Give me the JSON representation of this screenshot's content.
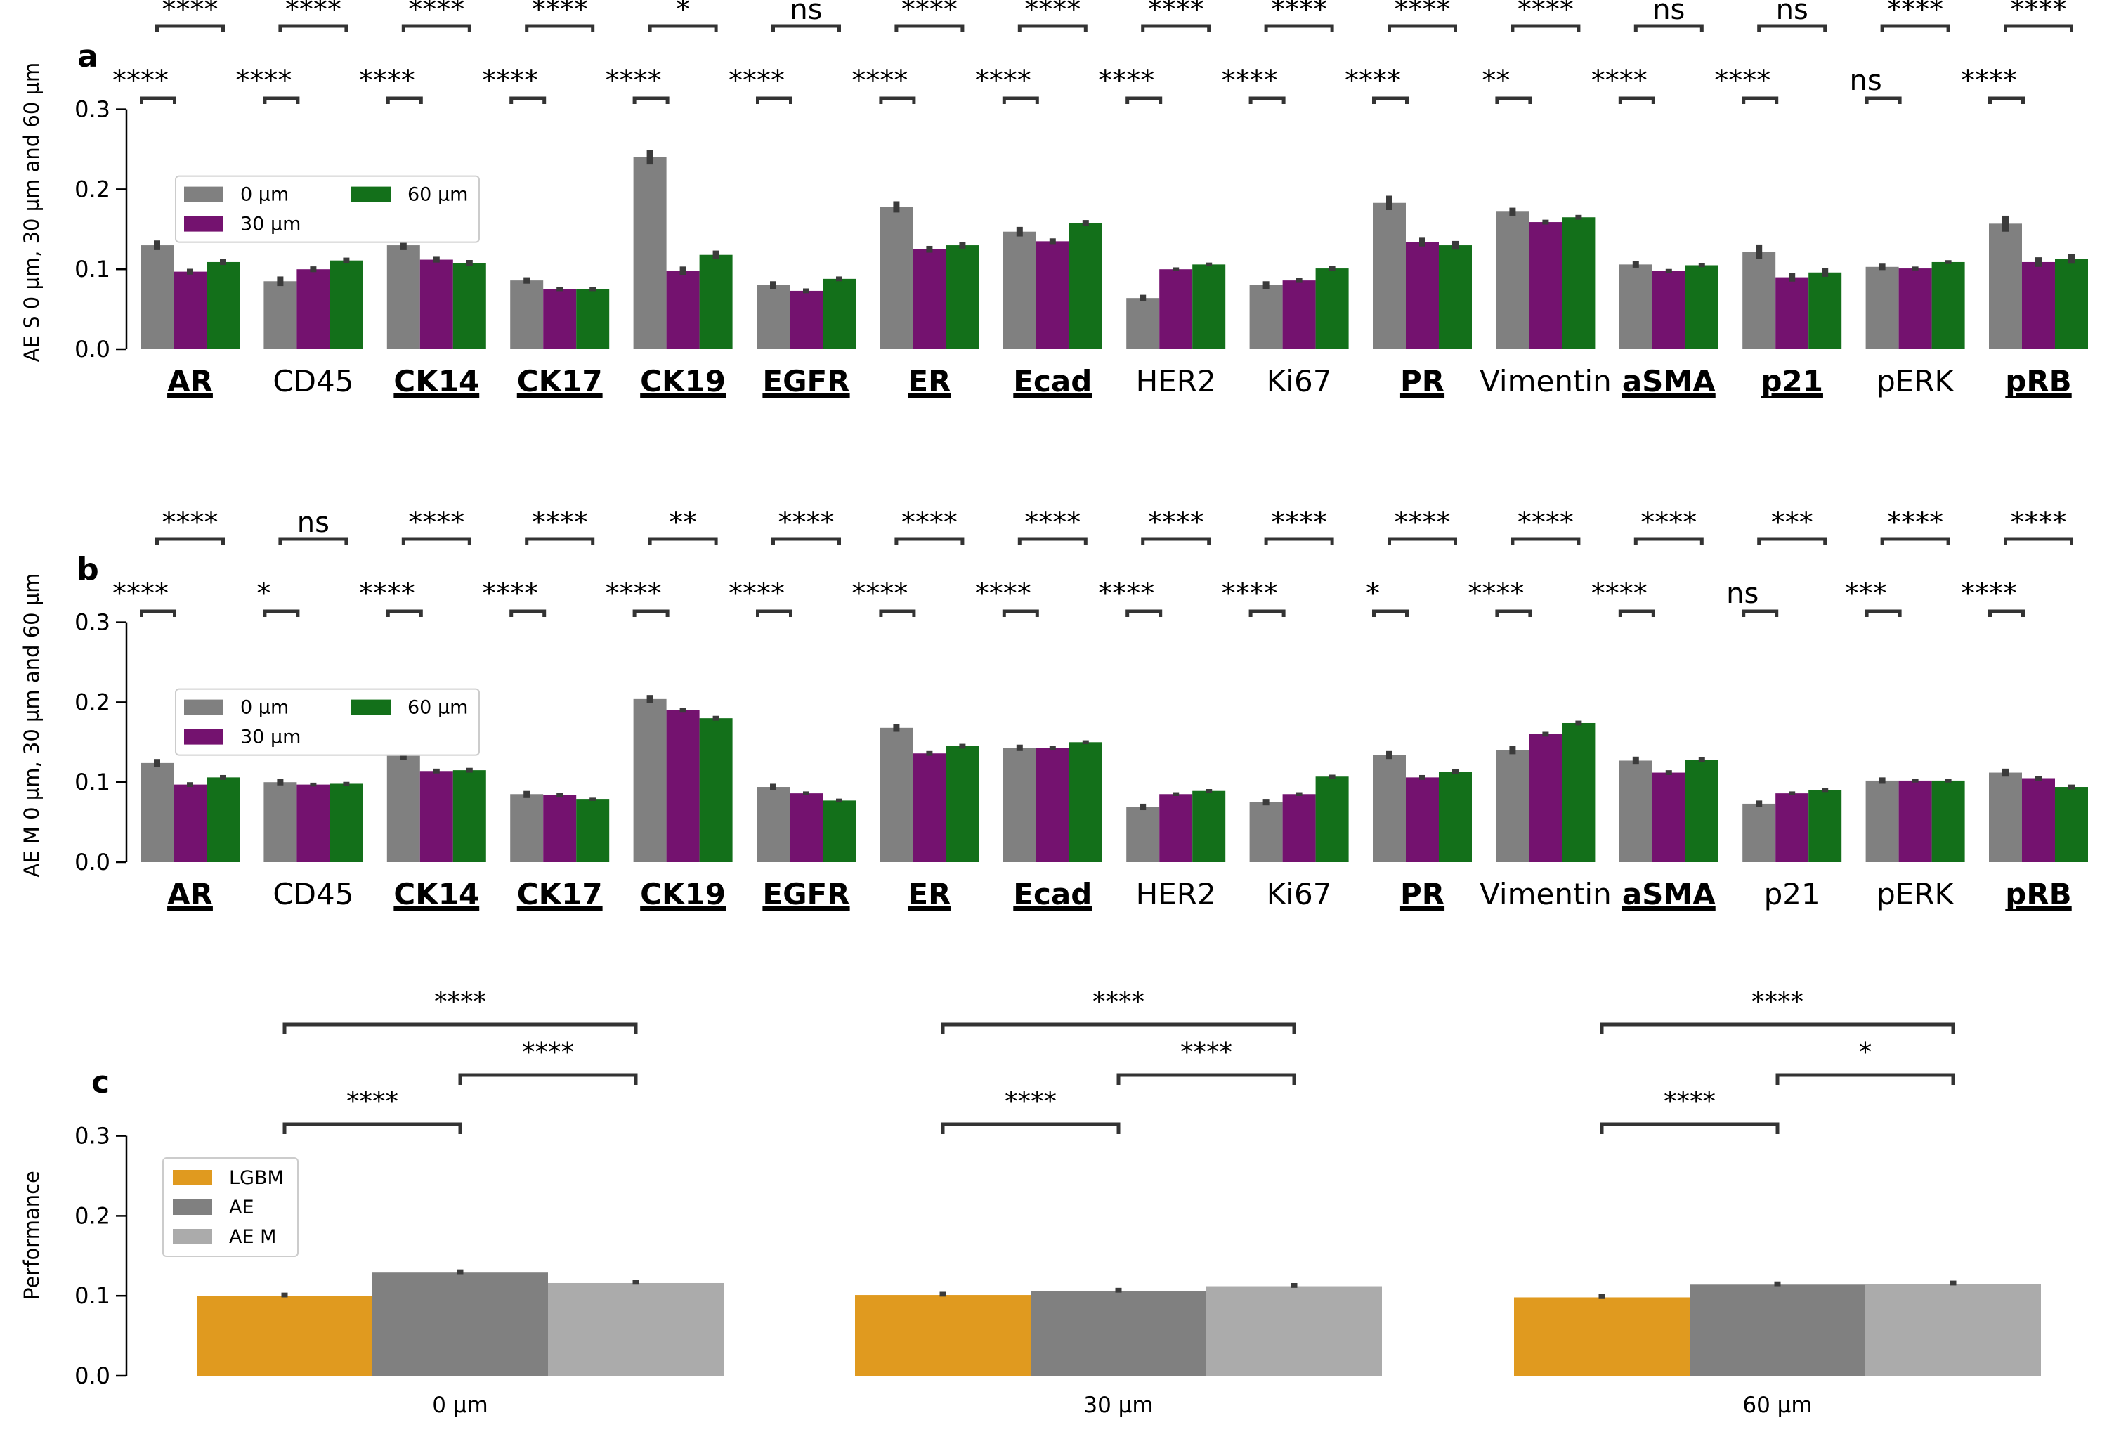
{
  "chart_data": [
    {
      "panel": "a",
      "type": "bar",
      "ylabel": "AE S 0 µm, 30 µm and 60 µm",
      "ylim": [
        0,
        0.3
      ],
      "yticks": [
        "0.0",
        "0.1",
        "0.2",
        "0.3"
      ],
      "categories": [
        "AR",
        "CD45",
        "CK14",
        "CK17",
        "CK19",
        "EGFR",
        "ER",
        "Ecad",
        "HER2",
        "Ki67",
        "PR",
        "Vimentin",
        "aSMA",
        "p21",
        "pERK",
        "pRB"
      ],
      "bold_categories": [
        "AR",
        "CK14",
        "CK17",
        "CK19",
        "EGFR",
        "ER",
        "Ecad",
        "PR",
        "aSMA",
        "p21",
        "pRB"
      ],
      "legend_position": "upper-left",
      "series": [
        {
          "name": "0 µm",
          "color": "#808080",
          "values": [
            0.13,
            0.085,
            0.13,
            0.086,
            0.24,
            0.08,
            0.178,
            0.147,
            0.064,
            0.08,
            0.183,
            0.172,
            0.106,
            0.122,
            0.103,
            0.157
          ]
        },
        {
          "name": "30 µm",
          "color": "#74126f",
          "values": [
            0.097,
            0.1,
            0.112,
            0.075,
            0.098,
            0.073,
            0.125,
            0.135,
            0.1,
            0.086,
            0.134,
            0.159,
            0.098,
            0.09,
            0.101,
            0.109
          ]
        },
        {
          "name": "60 µm",
          "color": "#13701a",
          "values": [
            0.109,
            0.111,
            0.108,
            0.075,
            0.118,
            0.088,
            0.13,
            0.158,
            0.106,
            0.101,
            0.13,
            0.165,
            0.105,
            0.096,
            0.109,
            0.113
          ]
        }
      ],
      "error_bars": [
        0.006,
        0.006,
        0.006,
        0.004,
        0.009,
        0.005,
        0.007,
        0.006,
        0.004,
        0.005,
        0.009,
        0.005,
        0.004,
        0.009,
        0.004,
        0.01
      ],
      "annotations_upper": [
        "****",
        "****",
        "****",
        "****",
        "*",
        "ns",
        "****",
        "****",
        "****",
        "****",
        "****",
        "****",
        "ns",
        "ns",
        "****",
        "****"
      ],
      "annotations_lower": [
        "****",
        "****",
        "****",
        "****",
        "****",
        "****",
        "****",
        "****",
        "****",
        "****",
        "****",
        "**",
        "****",
        "****",
        "ns",
        "****"
      ]
    },
    {
      "panel": "b",
      "type": "bar",
      "ylabel": "AE M 0 µm, 30 µm and 60 µm",
      "ylim": [
        0,
        0.3
      ],
      "yticks": [
        "0.0",
        "0.1",
        "0.2",
        "0.3"
      ],
      "categories": [
        "AR",
        "CD45",
        "CK14",
        "CK17",
        "CK19",
        "EGFR",
        "ER",
        "Ecad",
        "HER2",
        "Ki67",
        "PR",
        "Vimentin",
        "aSMA",
        "p21",
        "pERK",
        "pRB"
      ],
      "bold_categories": [
        "AR",
        "CK14",
        "CK17",
        "CK19",
        "EGFR",
        "ER",
        "Ecad",
        "PR",
        "aSMA",
        "pRB"
      ],
      "legend_position": "upper-left",
      "series": [
        {
          "name": "0 µm",
          "color": "#808080",
          "values": [
            0.124,
            0.1,
            0.133,
            0.085,
            0.204,
            0.094,
            0.168,
            0.143,
            0.069,
            0.075,
            0.134,
            0.14,
            0.127,
            0.073,
            0.102,
            0.112
          ]
        },
        {
          "name": "30 µm",
          "color": "#74126f",
          "values": [
            0.097,
            0.097,
            0.114,
            0.084,
            0.19,
            0.086,
            0.136,
            0.143,
            0.085,
            0.085,
            0.106,
            0.16,
            0.112,
            0.086,
            0.102,
            0.105
          ]
        },
        {
          "name": "60 µm",
          "color": "#13701a",
          "values": [
            0.106,
            0.098,
            0.115,
            0.079,
            0.18,
            0.077,
            0.145,
            0.15,
            0.089,
            0.107,
            0.113,
            0.174,
            0.128,
            0.09,
            0.102,
            0.094
          ]
        }
      ],
      "error_bars": [
        0.005,
        0.004,
        0.005,
        0.004,
        0.005,
        0.004,
        0.005,
        0.004,
        0.004,
        0.004,
        0.005,
        0.005,
        0.005,
        0.004,
        0.004,
        0.005
      ],
      "annotations_upper": [
        "****",
        "ns",
        "****",
        "****",
        "**",
        "****",
        "****",
        "****",
        "****",
        "****",
        "****",
        "****",
        "****",
        "***",
        "****",
        "****"
      ],
      "annotations_lower": [
        "****",
        "*",
        "****",
        "****",
        "****",
        "****",
        "****",
        "****",
        "****",
        "****",
        "*",
        "****",
        "****",
        "ns",
        "***",
        "****"
      ]
    },
    {
      "panel": "c",
      "type": "bar",
      "ylabel": "Performance",
      "ylim": [
        0,
        0.3
      ],
      "yticks": [
        "0.0",
        "0.1",
        "0.2",
        "0.3"
      ],
      "categories": [
        "0 µm",
        "30 µm",
        "60 µm"
      ],
      "legend_position": "upper-left",
      "series": [
        {
          "name": "LGBM",
          "color": "#e09a1f",
          "values": [
            0.1,
            0.101,
            0.098
          ]
        },
        {
          "name": "AE",
          "color": "#808080",
          "values": [
            0.129,
            0.106,
            0.114
          ]
        },
        {
          "name": "AE M",
          "color": "#ababab",
          "values": [
            0.116,
            0.112,
            0.115
          ]
        }
      ],
      "annotations": [
        {
          "group": "0 µm",
          "top": "****",
          "middle": "****",
          "bottom": "****"
        },
        {
          "group": "30 µm",
          "top": "****",
          "middle": "****",
          "bottom": "****"
        },
        {
          "group": "60 µm",
          "top": "****",
          "middle": "*",
          "bottom": "****"
        }
      ]
    }
  ]
}
